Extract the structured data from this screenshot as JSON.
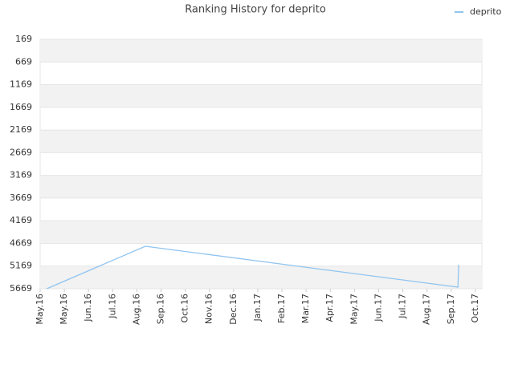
{
  "chart_data": {
    "type": "line",
    "title": "Ranking History for deprito",
    "x": [
      0.27,
      4.35,
      17.28,
      17.31
    ],
    "series": [
      {
        "name": "deprito",
        "color": "#90c4f0",
        "values": [
          5669,
          4732,
          5634,
          5138
        ]
      }
    ],
    "xlim": [
      0,
      18.27
    ],
    "xticks": [
      {
        "value": 0,
        "label": "May.16"
      },
      {
        "value": 1,
        "label": "May.16"
      },
      {
        "value": 2,
        "label": "Jun.16"
      },
      {
        "value": 3,
        "label": "Jul.16"
      },
      {
        "value": 4,
        "label": "Aug.16"
      },
      {
        "value": 5,
        "label": "Sep.16"
      },
      {
        "value": 6,
        "label": "Oct.16"
      },
      {
        "value": 7,
        "label": "Nov.16"
      },
      {
        "value": 8,
        "label": "Dec.16"
      },
      {
        "value": 9,
        "label": "Jan.17"
      },
      {
        "value": 10,
        "label": "Feb.17"
      },
      {
        "value": 11,
        "label": "Mar.17"
      },
      {
        "value": 12,
        "label": "Apr.17"
      },
      {
        "value": 13,
        "label": "May.17"
      },
      {
        "value": 14,
        "label": "Jun.17"
      },
      {
        "value": 15,
        "label": "Jul.17"
      },
      {
        "value": 16,
        "label": "Aug.17"
      },
      {
        "value": 17,
        "label": "Sep.17"
      },
      {
        "value": 18,
        "label": "Oct.17"
      }
    ],
    "ylim": [
      169,
      5669
    ],
    "y_inverted": true,
    "yticks": [
      169,
      669,
      1169,
      1669,
      2169,
      2669,
      3169,
      3669,
      4169,
      4669,
      5169,
      5669
    ],
    "grid": true,
    "legend": "top-right"
  }
}
